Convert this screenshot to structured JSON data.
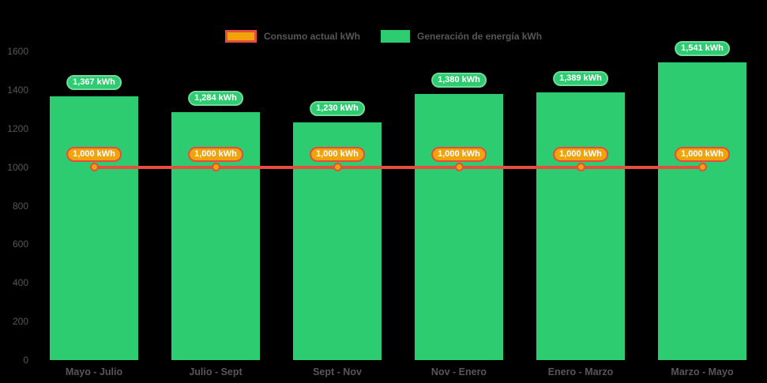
{
  "legend": {
    "items": [
      {
        "label": "Consumo actual kWh",
        "swatch_fill": "#f0a30a",
        "swatch_border": "#e74c3c"
      },
      {
        "label": "Generación de energía kWh",
        "swatch_fill": "#2ecc71",
        "swatch_border": "#2ecc71"
      }
    ]
  },
  "colors": {
    "background": "#000000",
    "bar": "#2ecc71",
    "bar_label_bg": "#2ecc71",
    "bar_label_border": "#70db9b",
    "line": "#e74c3c",
    "marker_fill": "#f0a30a",
    "marker_border": "#e74c3c",
    "line_label_bg": "#f0a30a",
    "line_label_border": "#e74c3c",
    "axis_text": "#575757",
    "label_text": "#ffffff"
  },
  "chart_data": {
    "type": "bar",
    "title": "",
    "xlabel": "",
    "ylabel": "",
    "categories": [
      "Mayo - Julio",
      "Julio - Sept",
      "Sept - Nov",
      "Nov - Enero",
      "Enero - Marzo",
      "Marzo - Mayo"
    ],
    "series": [
      {
        "name": "Generación de energía kWh",
        "type": "bar",
        "color": "#2ecc71",
        "values": [
          1367,
          1284,
          1230,
          1380,
          1389,
          1541
        ],
        "labels": [
          "1,367 kWh",
          "1,284 kWh",
          "1,230 kWh",
          "1,380 kWh",
          "1,389 kWh",
          "1,541 kWh"
        ]
      },
      {
        "name": "Consumo actual kWh",
        "type": "line",
        "color": "#e74c3c",
        "values": [
          1000,
          1000,
          1000,
          1000,
          1000,
          1000
        ],
        "labels": [
          "1,000 kWh",
          "1,000 kWh",
          "1,000 kWh",
          "1,000 kWh",
          "1,000 kWh",
          "1,000 kWh"
        ]
      }
    ],
    "ylim": [
      0,
      1600
    ],
    "yticks": [
      0,
      200,
      400,
      600,
      800,
      1000,
      1200,
      1400,
      1600
    ],
    "legend_position": "top",
    "grid": false
  }
}
